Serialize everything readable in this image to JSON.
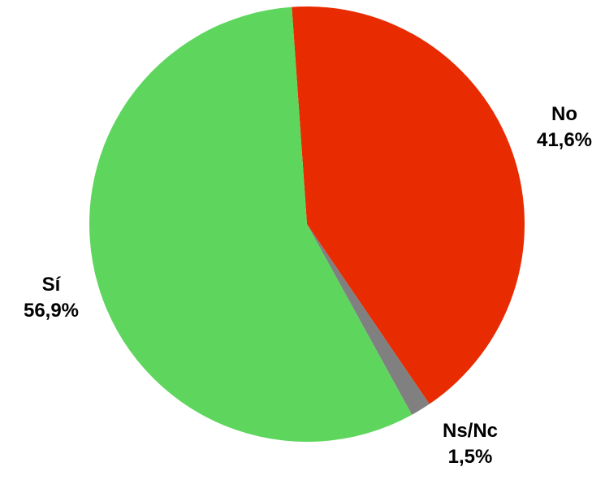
{
  "chart_data": {
    "type": "pie",
    "title": "",
    "slices": [
      {
        "label": "No",
        "value_label": "41,6%",
        "value": 41.6,
        "color": "#e82b00"
      },
      {
        "label": "Ns/Nc",
        "value_label": "1,5%",
        "value": 1.5,
        "color": "#808080"
      },
      {
        "label": "Sí",
        "value_label": "56,9%",
        "value": 56.9,
        "color": "#5ed65e"
      }
    ],
    "start": "top, clockwise",
    "legend": "none (labels beside slices)"
  }
}
